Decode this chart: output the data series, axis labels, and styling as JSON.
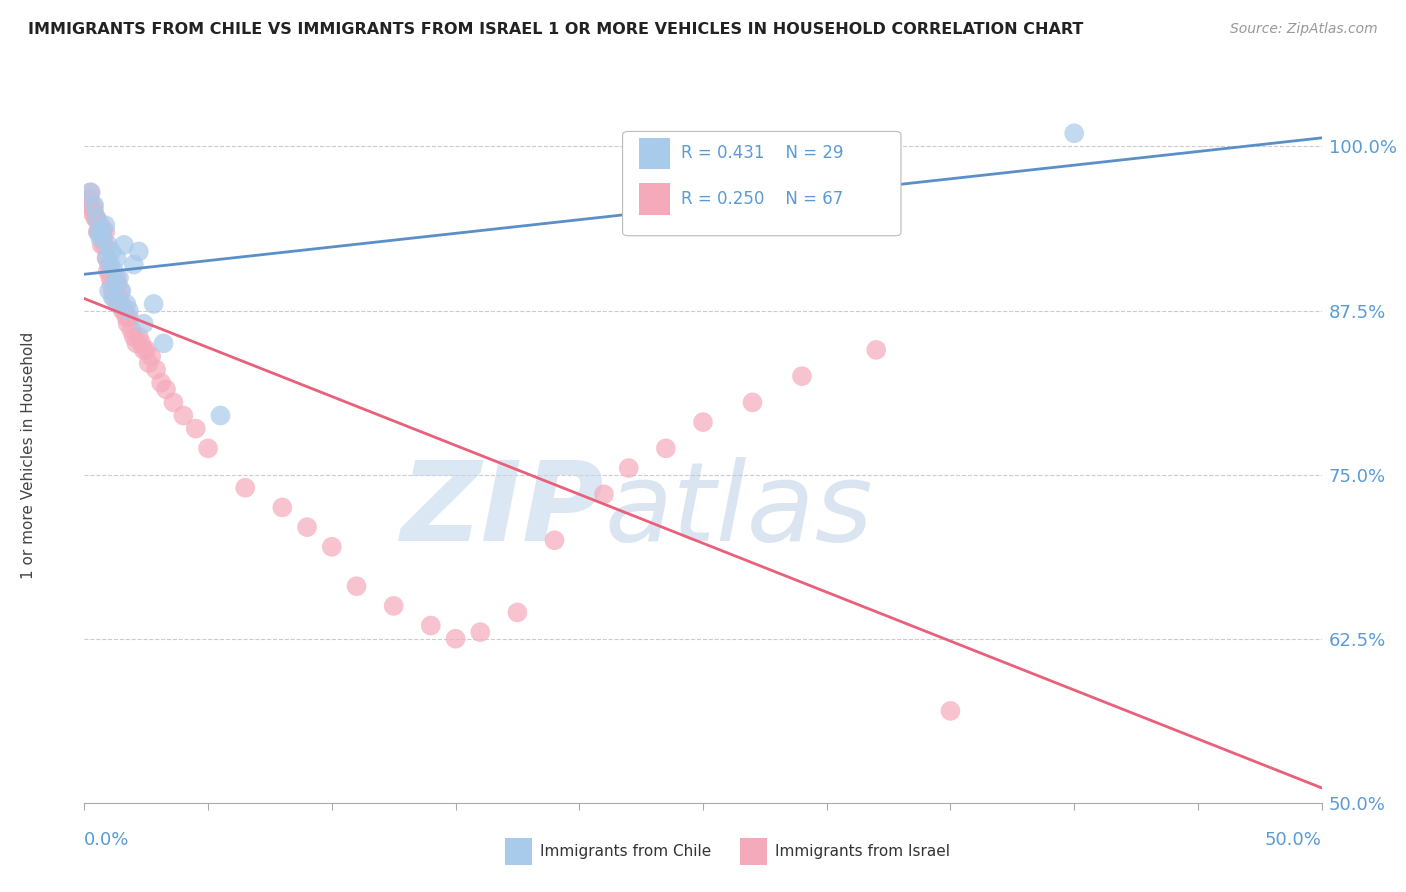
{
  "title": "IMMIGRANTS FROM CHILE VS IMMIGRANTS FROM ISRAEL 1 OR MORE VEHICLES IN HOUSEHOLD CORRELATION CHART",
  "source": "Source: ZipAtlas.com",
  "ylabel_label": "1 or more Vehicles in Household",
  "xlim": [
    0.0,
    50.0
  ],
  "ylim": [
    50.0,
    103.0
  ],
  "legend_r_chile": "R = 0.431",
  "legend_n_chile": "N = 29",
  "legend_r_israel": "R = 0.250",
  "legend_n_israel": "N = 67",
  "chile_color": "#A8CAEB",
  "israel_color": "#F5AABB",
  "chile_line_color": "#5A8FC8",
  "israel_line_color": "#E8607A",
  "watermark_zip": "ZIP",
  "watermark_atlas": "atlas",
  "y_ticks": [
    50.0,
    62.5,
    75.0,
    87.5,
    100.0
  ],
  "y_tick_labels": [
    "50.0%",
    "62.5%",
    "75.0%",
    "87.5%",
    "100.0%"
  ],
  "chile_x": [
    0.25,
    0.4,
    0.5,
    0.55,
    0.65,
    0.75,
    0.85,
    0.9,
    0.95,
    1.0,
    1.05,
    1.1,
    1.15,
    1.2,
    1.25,
    1.3,
    1.35,
    1.4,
    1.5,
    1.6,
    1.7,
    1.8,
    2.0,
    2.2,
    2.4,
    2.8,
    3.2,
    5.5,
    40.0
  ],
  "chile_y": [
    96.5,
    95.5,
    94.5,
    93.5,
    93.0,
    93.5,
    94.0,
    91.5,
    92.5,
    89.0,
    91.0,
    92.0,
    88.5,
    90.5,
    89.5,
    91.5,
    88.0,
    90.0,
    89.0,
    92.5,
    88.0,
    87.5,
    91.0,
    92.0,
    86.5,
    88.0,
    85.0,
    79.5,
    101.0
  ],
  "israel_x": [
    0.15,
    0.2,
    0.25,
    0.3,
    0.35,
    0.4,
    0.45,
    0.5,
    0.55,
    0.6,
    0.65,
    0.7,
    0.75,
    0.8,
    0.85,
    0.9,
    0.95,
    1.0,
    1.05,
    1.1,
    1.15,
    1.2,
    1.3,
    1.35,
    1.4,
    1.45,
    1.5,
    1.55,
    1.6,
    1.7,
    1.75,
    1.8,
    1.9,
    2.0,
    2.1,
    2.2,
    2.3,
    2.4,
    2.5,
    2.6,
    2.7,
    2.9,
    3.1,
    3.3,
    3.6,
    4.0,
    4.5,
    5.0,
    6.5,
    8.0,
    9.0,
    10.0,
    11.0,
    12.5,
    14.0,
    15.0,
    16.0,
    17.5,
    19.0,
    21.0,
    22.0,
    23.5,
    25.0,
    27.0,
    29.0,
    32.0,
    35.0
  ],
  "israel_y": [
    95.5,
    96.0,
    96.5,
    95.0,
    95.5,
    95.0,
    94.5,
    94.5,
    93.5,
    93.5,
    94.0,
    92.5,
    93.0,
    92.5,
    93.5,
    91.5,
    90.5,
    91.0,
    90.0,
    89.5,
    89.0,
    88.5,
    90.0,
    89.5,
    88.5,
    89.0,
    88.0,
    87.5,
    87.5,
    87.0,
    86.5,
    87.0,
    86.0,
    85.5,
    85.0,
    85.5,
    85.0,
    84.5,
    84.5,
    83.5,
    84.0,
    83.0,
    82.0,
    81.5,
    80.5,
    79.5,
    78.5,
    77.0,
    74.0,
    72.5,
    71.0,
    69.5,
    66.5,
    65.0,
    63.5,
    62.5,
    63.0,
    64.5,
    70.0,
    73.5,
    75.5,
    77.0,
    79.0,
    80.5,
    82.5,
    84.5,
    57.0
  ]
}
